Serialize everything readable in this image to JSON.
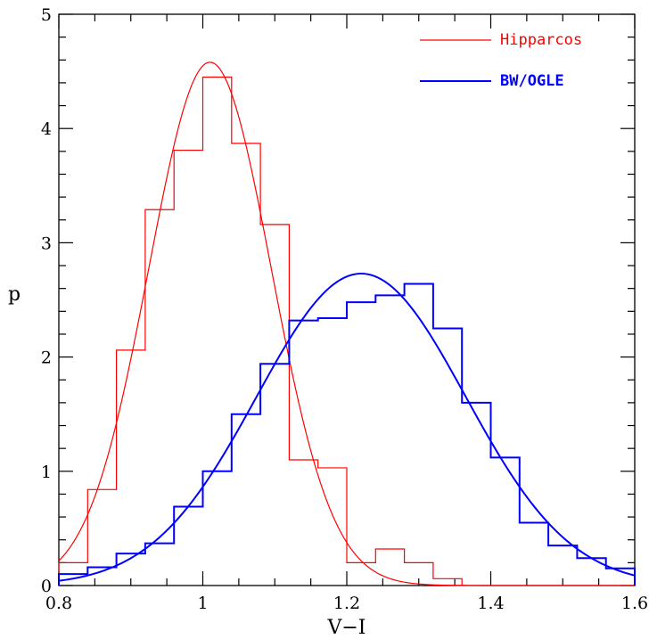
{
  "chart_data": {
    "type": "line",
    "title": "",
    "xlabel": "V−I",
    "ylabel": "p",
    "xlim": [
      0.8,
      1.6
    ],
    "ylim": [
      0,
      5
    ],
    "x_ticks": [
      "0.8",
      "1",
      "1.2",
      "1.4",
      "1.6"
    ],
    "y_ticks": [
      "0",
      "1",
      "2",
      "3",
      "4",
      "5"
    ],
    "x_tick_values": [
      0.8,
      1.0,
      1.2,
      1.4,
      1.6
    ],
    "y_tick_values": [
      0,
      1,
      2,
      3,
      4,
      5
    ],
    "legend_position": "top-right",
    "series": [
      {
        "name": "Hipparcos",
        "color": "#ff0000",
        "histogram": {
          "edges": [
            0.8,
            0.84,
            0.88,
            0.92,
            0.96,
            1.0,
            1.04,
            1.08,
            1.12,
            1.16,
            1.2,
            1.24,
            1.28,
            1.32,
            1.36
          ],
          "values": [
            0.2,
            0.84,
            2.06,
            3.29,
            3.81,
            4.45,
            3.87,
            3.16,
            1.1,
            1.03,
            0.2,
            0.32,
            0.2,
            0.06
          ]
        },
        "gaussian": {
          "amplitude": 4.58,
          "mean": 1.01,
          "sigma": 0.085
        }
      },
      {
        "name": "BW/OGLE",
        "color": "#0000ff",
        "histogram": {
          "edges": [
            0.8,
            0.84,
            0.88,
            0.92,
            0.96,
            1.0,
            1.04,
            1.08,
            1.12,
            1.16,
            1.2,
            1.24,
            1.28,
            1.32,
            1.36,
            1.4,
            1.44,
            1.48,
            1.52,
            1.56,
            1.6
          ],
          "values": [
            0.1,
            0.16,
            0.28,
            0.37,
            0.69,
            1.0,
            1.5,
            1.94,
            2.32,
            2.34,
            2.48,
            2.54,
            2.64,
            2.25,
            1.6,
            1.12,
            0.55,
            0.35,
            0.24,
            0.15
          ]
        },
        "gaussian": {
          "amplitude": 2.73,
          "mean": 1.22,
          "sigma": 0.145
        }
      }
    ]
  }
}
